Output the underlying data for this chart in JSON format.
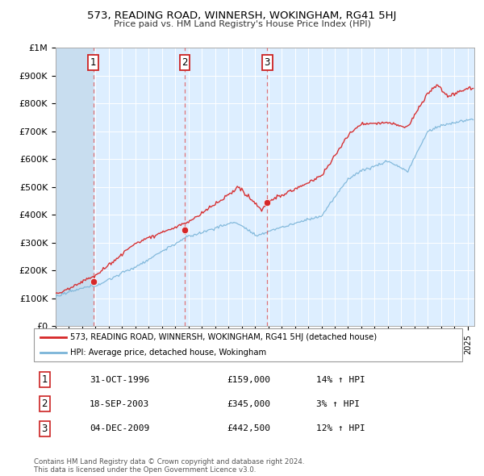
{
  "title": "573, READING ROAD, WINNERSH, WOKINGHAM, RG41 5HJ",
  "subtitle": "Price paid vs. HM Land Registry's House Price Index (HPI)",
  "ylim": [
    0,
    1000000
  ],
  "xlim_start": 1994.0,
  "xlim_end": 2025.5,
  "yticks": [
    0,
    100000,
    200000,
    300000,
    400000,
    500000,
    600000,
    700000,
    800000,
    900000,
    1000000
  ],
  "ytick_labels": [
    "£0",
    "£100K",
    "£200K",
    "£300K",
    "£400K",
    "£500K",
    "£600K",
    "£700K",
    "£800K",
    "£900K",
    "£1M"
  ],
  "sale_dates": [
    1996.83,
    2003.71,
    2009.92
  ],
  "sale_prices": [
    159000,
    345000,
    442500
  ],
  "sale_labels": [
    "1",
    "2",
    "3"
  ],
  "hpi_color": "#7ab4d8",
  "price_color": "#d62728",
  "vline_color": "#e06060",
  "bg_color": "#ddeeff",
  "legend_label_price": "573, READING ROAD, WINNERSH, WOKINGHAM, RG41 5HJ (detached house)",
  "legend_label_hpi": "HPI: Average price, detached house, Wokingham",
  "footer": "Contains HM Land Registry data © Crown copyright and database right 2024.\nThis data is licensed under the Open Government Licence v3.0.",
  "table_rows": [
    [
      "1",
      "31-OCT-1996",
      "£159,000",
      "14% ↑ HPI"
    ],
    [
      "2",
      "18-SEP-2003",
      "£345,000",
      "3% ↑ HPI"
    ],
    [
      "3",
      "04-DEC-2009",
      "£442,500",
      "12% ↑ HPI"
    ]
  ]
}
